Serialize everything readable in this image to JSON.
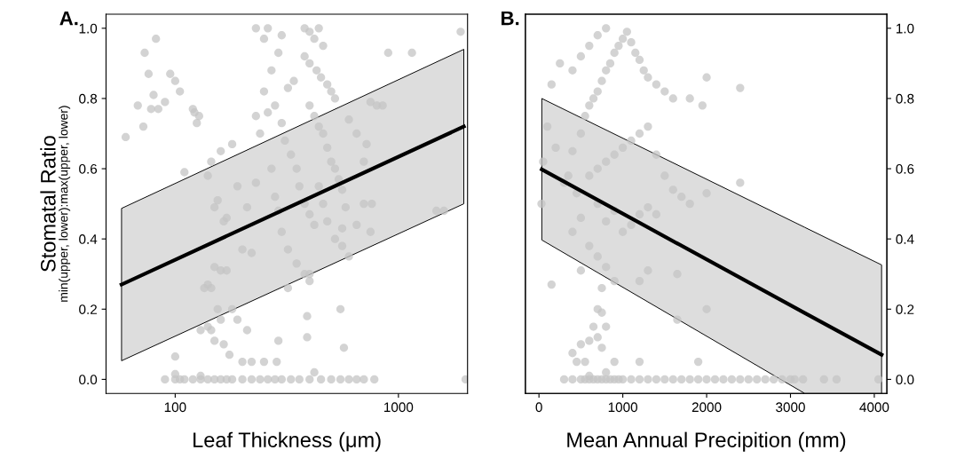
{
  "chart_data": [
    {
      "type": "scatter",
      "title": "A.",
      "xlabel": "Leaf Thickness (μm)",
      "ylabel": "Stomatal Ratio\nmin(upper, lower):max(upper, lower)",
      "log": "x",
      "xlim": [
        49,
        2040
      ],
      "xticks": [
        100,
        1000
      ],
      "ylim": [
        -0.04,
        1.04
      ],
      "yticks": [
        {
          "value": 0,
          "label": "0.0"
        },
        0.2,
        0.4,
        0.6,
        0.8,
        {
          "value": 1,
          "label": "1.0"
        }
      ],
      "grid": false,
      "series": [
        {
          "marker": "circle",
          "color": "#c4c4c4",
          "x": [
            90,
            100,
            105,
            110,
            120,
            130,
            140,
            150,
            160,
            170,
            180,
            200,
            220,
            240,
            260,
            280,
            300,
            330,
            360,
            400,
            450,
            500,
            550,
            600,
            650,
            700,
            780,
            2000,
            100,
            130,
            420,
            60,
            68,
            72,
            73,
            76,
            78,
            80,
            82,
            84,
            90,
            95,
            100,
            105,
            120,
            122,
            125,
            128,
            110,
            100,
            140,
            145,
            150,
            155,
            160,
            165,
            170,
            180,
            190,
            200,
            210,
            220,
            230,
            150,
            160,
            170,
            135,
            140,
            145,
            155,
            160,
            180,
            140,
            145,
            130,
            150,
            165,
            175,
            200,
            220,
            250,
            210,
            190,
            240,
            260,
            280,
            230,
            250,
            270,
            290,
            300,
            250,
            230,
            260,
            320,
            340,
            300,
            310,
            330,
            350,
            360,
            380,
            400,
            420,
            300,
            320,
            350,
            380,
            400,
            270,
            280,
            290,
            380,
            400,
            420,
            440,
            460,
            380,
            400,
            430,
            450,
            480,
            500,
            520,
            400,
            420,
            440,
            460,
            480,
            500,
            520,
            540,
            560,
            440,
            460,
            480,
            520,
            560,
            600,
            650,
            700,
            750,
            700,
            800,
            750,
            650,
            600,
            850,
            900,
            1480,
            1600,
            720,
            760,
            580,
            560,
            550,
            570,
            390,
            390,
            400,
            320,
            290,
            285,
            1900,
            1150
          ],
          "values": [
            0,
            0,
            0,
            0,
            0,
            0,
            0,
            0,
            0,
            0,
            0,
            0,
            0,
            0,
            0,
            0,
            0,
            0,
            0,
            0,
            0,
            0,
            0,
            0,
            0,
            0,
            0,
            0,
            0.015,
            0.01,
            0.02,
            0.69,
            0.78,
            0.72,
            0.93,
            0.87,
            0.77,
            0.81,
            0.97,
            0.77,
            0.79,
            0.87,
            0.85,
            0.82,
            0.77,
            0.76,
            0.73,
            0.75,
            0.59,
            0.065,
            0.58,
            0.62,
            0.49,
            0.51,
            0.65,
            0.45,
            0.46,
            0.67,
            0.55,
            0.37,
            0.49,
            0.36,
            0.56,
            0.32,
            0.31,
            0.31,
            0.26,
            0.27,
            0.26,
            0.2,
            0.17,
            0.2,
            0.15,
            0.14,
            0.14,
            0.11,
            0.1,
            0.07,
            0.05,
            0.05,
            0.05,
            0.14,
            0.17,
            0.7,
            0.76,
            0.78,
            0.75,
            0.82,
            0.88,
            0.93,
            0.98,
            0.97,
            1.0,
            1.0,
            0.83,
            0.85,
            0.73,
            0.68,
            0.64,
            0.6,
            0.55,
            0.5,
            0.47,
            0.44,
            0.42,
            0.37,
            0.33,
            0.3,
            0.3,
            0.6,
            0.52,
            0.48,
            1.0,
            0.99,
            0.97,
            1.0,
            0.95,
            0.92,
            0.9,
            0.88,
            0.86,
            0.84,
            0.82,
            0.8,
            0.78,
            0.75,
            0.72,
            0.7,
            0.66,
            0.62,
            0.6,
            0.57,
            0.54,
            0.55,
            0.5,
            0.45,
            0.4,
            0.38,
            0.35,
            0.44,
            0.5,
            0.42,
            0.62,
            0.78,
            0.79,
            0.7,
            0.74,
            0.78,
            0.93,
            0.48,
            0.48,
            0.67,
            0.5,
            0.49,
            0.43,
            0.2,
            0.09,
            0.18,
            0.12,
            0.28,
            0.26,
            0.11,
            0.05,
            0.99,
            0.93
          ]
        },
        {
          "type": "line",
          "marker": "none",
          "color": "#000000",
          "x": [
            57.5,
            1963
          ],
          "values": [
            0.27,
            0.72
          ],
          "lower": [
            0.053,
            0.5
          ],
          "upper": [
            0.487,
            0.94
          ]
        }
      ]
    },
    {
      "type": "scatter",
      "title": "B.",
      "xlabel": "Mean Annual Precipition (mm)",
      "xlim": [
        -162,
        4150
      ],
      "xticks": [
        0,
        1000,
        2000,
        3000,
        4000
      ],
      "y2lim": [
        -0.04,
        1.04
      ],
      "y2ticks": [
        {
          "value": 0,
          "label": "0.0"
        },
        0.2,
        0.4,
        0.6,
        0.8,
        {
          "value": 1,
          "label": "1.0"
        }
      ],
      "grid": false,
      "series": [
        {
          "marker": "circle",
          "axis": "y2",
          "color": "#c4c4c4",
          "x": [
            300,
            400,
            500,
            550,
            600,
            650,
            700,
            750,
            800,
            850,
            900,
            950,
            1000,
            1100,
            1200,
            1300,
            1400,
            1500,
            1600,
            1700,
            1800,
            1900,
            2000,
            2100,
            2200,
            2300,
            2400,
            2500,
            2600,
            2700,
            2800,
            2900,
            3000,
            3050,
            3150,
            3400,
            3550,
            4050,
            50,
            30,
            100,
            150,
            200,
            250,
            300,
            350,
            400,
            450,
            500,
            550,
            600,
            650,
            700,
            750,
            800,
            850,
            900,
            950,
            1000,
            1050,
            1100,
            1150,
            1200,
            1250,
            1300,
            600,
            700,
            800,
            500,
            400,
            1400,
            1500,
            1600,
            1800,
            1950,
            2000,
            2400,
            1300,
            1200,
            1100,
            1000,
            900,
            800,
            700,
            600,
            1400,
            1500,
            1600,
            1700,
            1800,
            2000,
            2400,
            700,
            800,
            900,
            1000,
            1100,
            1200,
            1300,
            1400,
            500,
            400,
            600,
            700,
            800,
            750,
            900,
            1200,
            1300,
            500,
            150,
            1650,
            1650,
            2000,
            700,
            750,
            800,
            650,
            700,
            600,
            750,
            500,
            400,
            450,
            550,
            900,
            1200,
            1900,
            800,
            600
          ],
          "values": [
            0,
            0,
            0,
            0,
            0,
            0,
            0,
            0,
            0,
            0,
            0,
            0,
            0,
            0,
            0,
            0,
            0,
            0,
            0,
            0,
            0,
            0,
            0,
            0,
            0,
            0,
            0,
            0,
            0,
            0,
            0,
            0,
            0,
            0,
            0,
            0,
            0,
            0,
            0.62,
            0.5,
            0.72,
            0.84,
            0.66,
            0.9,
            0.56,
            0.58,
            0.65,
            0.53,
            0.7,
            0.75,
            0.78,
            0.8,
            0.82,
            0.85,
            0.88,
            0.9,
            0.93,
            0.95,
            0.97,
            0.99,
            0.96,
            0.93,
            0.91,
            0.88,
            0.86,
            0.95,
            0.98,
            1.0,
            0.92,
            0.88,
            0.84,
            0.82,
            0.8,
            0.8,
            0.78,
            0.86,
            0.83,
            0.72,
            0.7,
            0.68,
            0.66,
            0.64,
            0.62,
            0.6,
            0.58,
            0.64,
            0.58,
            0.54,
            0.52,
            0.5,
            0.53,
            0.56,
            0.5,
            0.45,
            0.48,
            0.42,
            0.44,
            0.47,
            0.49,
            0.47,
            0.46,
            0.42,
            0.38,
            0.35,
            0.32,
            0.26,
            0.28,
            0.28,
            0.31,
            0.31,
            0.27,
            0.3,
            0.17,
            0.2,
            0.2,
            0.19,
            0.15,
            0.15,
            0.12,
            0.11,
            0.09,
            0.1,
            0.075,
            0.05,
            0.05,
            0.05,
            0.05,
            0.05,
            0.02,
            0.01
          ]
        },
        {
          "type": "line",
          "marker": "none",
          "axis": "y2",
          "color": "#000000",
          "x": [
            34,
            3170,
            4087
          ],
          "values": [
            0.598,
            0.189,
            0.07
          ],
          "lower": [
            0.397,
            -0.04,
            -0.04
          ],
          "upper": [
            0.8,
            0.433,
            0.326
          ]
        }
      ]
    }
  ]
}
